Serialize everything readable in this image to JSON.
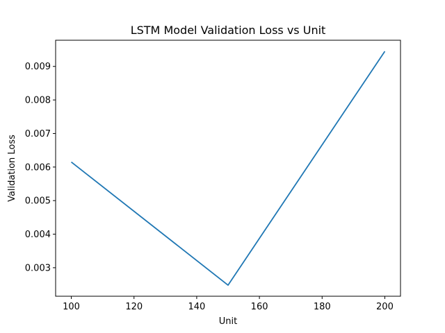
{
  "chart_data": {
    "type": "line",
    "title": "LSTM Model Validation Loss vs Unit",
    "xlabel": "Unit",
    "ylabel": "Validation Loss",
    "x": [
      100,
      150,
      200
    ],
    "series": [
      {
        "values": [
          0.00615,
          0.00248,
          0.00945
        ],
        "color": "#1f77b4"
      }
    ],
    "xlim": [
      95,
      205
    ],
    "ylim": [
      0.00215,
      0.00978
    ],
    "xticks": [
      100,
      120,
      140,
      160,
      180,
      200
    ],
    "xtick_labels": [
      "100",
      "120",
      "140",
      "160",
      "180",
      "200"
    ],
    "yticks": [
      0.003,
      0.004,
      0.005,
      0.006,
      0.007,
      0.008,
      0.009
    ],
    "ytick_labels": [
      "0.003",
      "0.004",
      "0.005",
      "0.006",
      "0.007",
      "0.008",
      "0.009"
    ],
    "grid": false,
    "legend": false
  }
}
